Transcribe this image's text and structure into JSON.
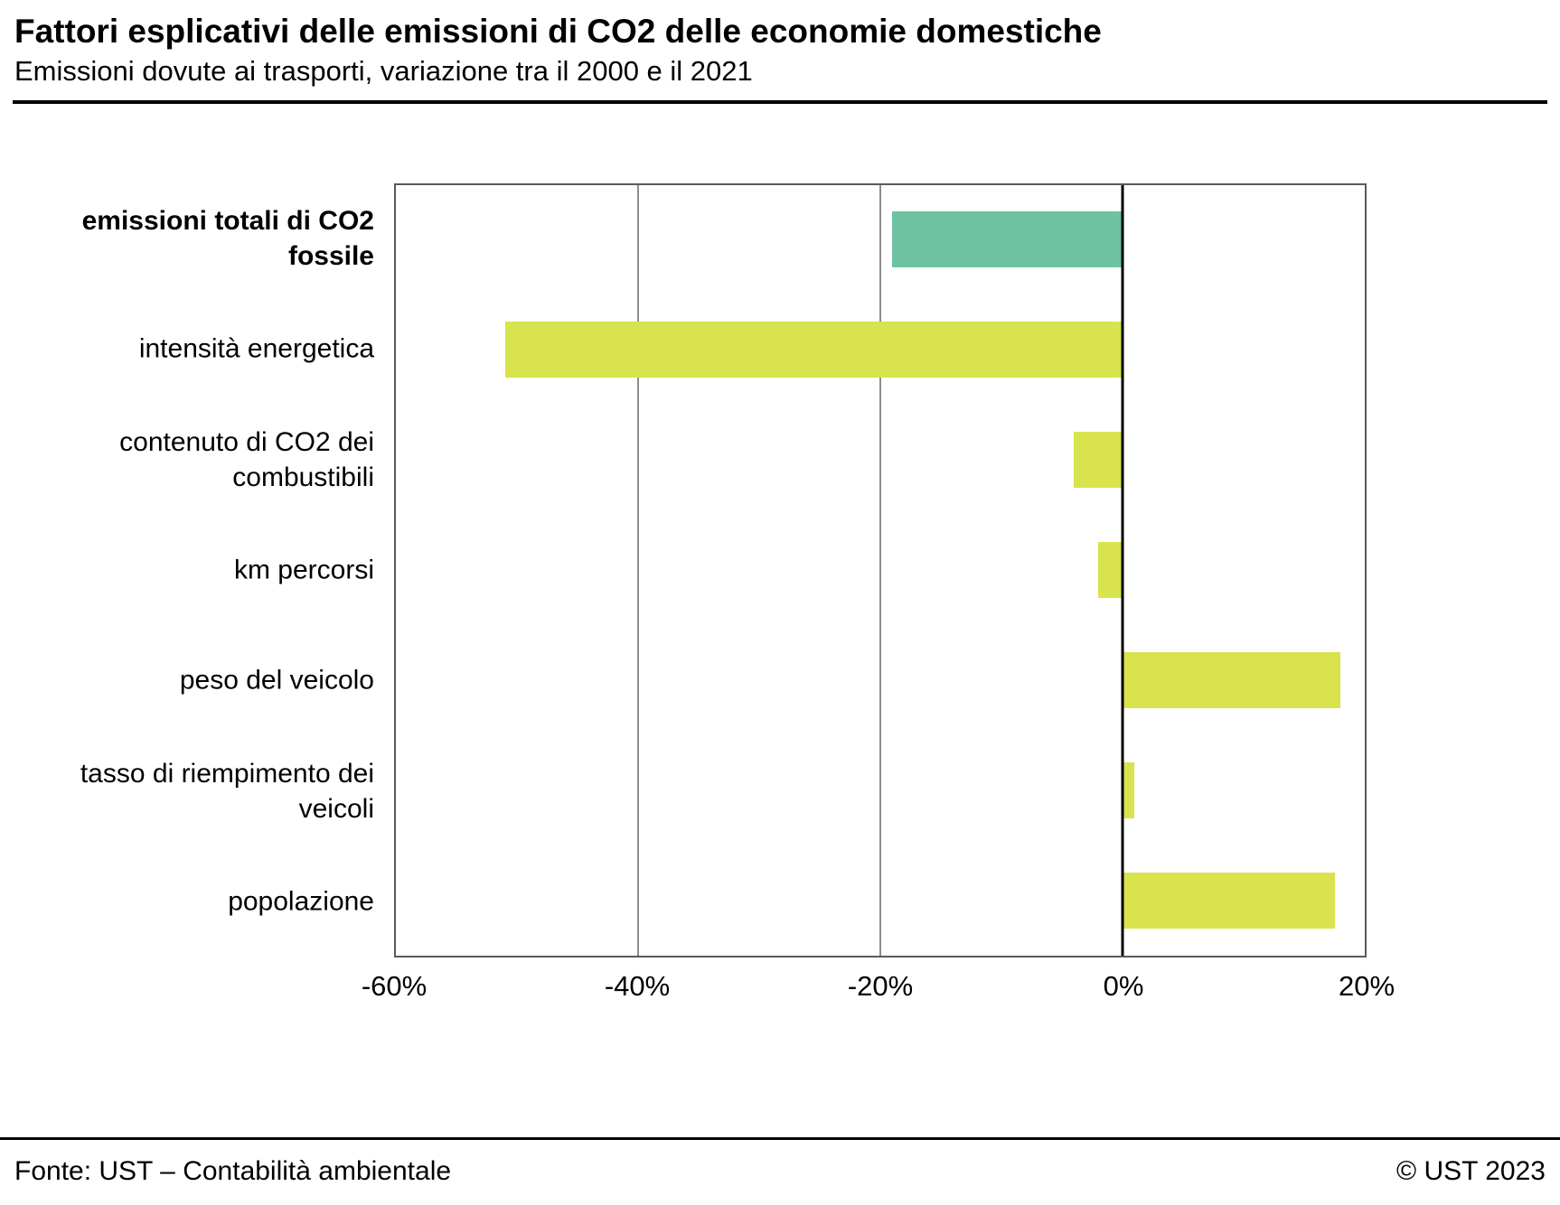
{
  "header": {
    "title": "Fattori esplicativi delle emissioni di CO2 delle economie domestiche",
    "subtitle": "Emissioni dovute ai trasporti, variazione tra il 2000 e il 2021"
  },
  "footer": {
    "source": "Fonte: UST – Contabilità ambientale",
    "copyright": "© UST 2023"
  },
  "chart_data": {
    "type": "bar",
    "orientation": "horizontal",
    "title": "Fattori esplicativi delle emissioni di CO2 delle economie domestiche",
    "subtitle": "Emissioni dovute ai trasporti, variazione tra il 2000 e il 2021",
    "categories": [
      "emissioni totali di CO2 fossile",
      "intensità energetica",
      "contenuto di CO2 dei combustibili",
      "km percorsi",
      "peso del veicolo",
      "tasso di riempimento dei veicoli",
      "popolazione"
    ],
    "values": [
      -19,
      -51,
      -4,
      -2,
      18,
      1,
      17.5
    ],
    "bold": [
      true,
      false,
      false,
      false,
      false,
      false,
      false
    ],
    "colors": [
      "#6ec2a1",
      "#d8e34d",
      "#d8e34d",
      "#d8e34d",
      "#d8e34d",
      "#d8e34d",
      "#d8e34d"
    ],
    "unit": "%",
    "xlim": [
      -60,
      20
    ],
    "ticks": [
      -60,
      -40,
      -20,
      0,
      20
    ],
    "tick_labels": [
      "-60%",
      "-40%",
      "-20%",
      "0%",
      "20%"
    ],
    "grid": "vertical",
    "legend": "none"
  }
}
